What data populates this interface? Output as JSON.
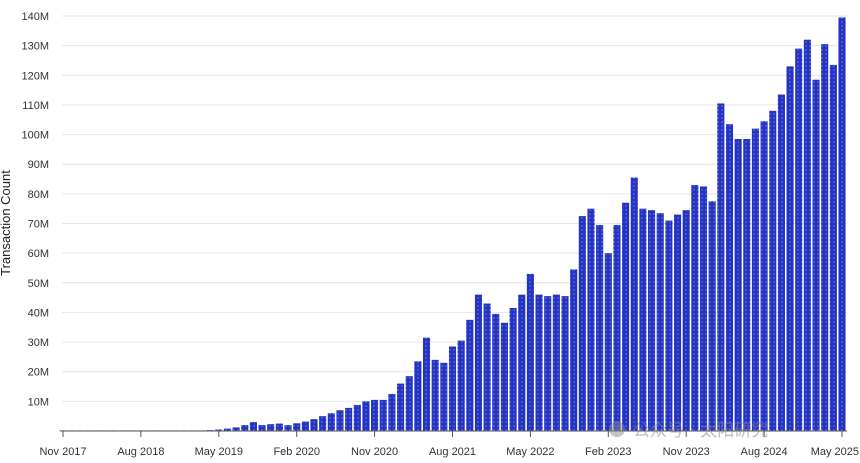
{
  "chart_data": {
    "type": "bar",
    "title": "",
    "xlabel": "",
    "ylabel": "Transaction Count",
    "ylim": [
      0,
      140
    ],
    "y_unit": "M",
    "y_ticks": [
      10,
      20,
      30,
      40,
      50,
      60,
      70,
      80,
      90,
      100,
      110,
      120,
      130,
      140
    ],
    "y_tick_labels": [
      "10M",
      "20M",
      "30M",
      "40M",
      "50M",
      "60M",
      "70M",
      "80M",
      "90M",
      "100M",
      "110M",
      "120M",
      "130M",
      "140M"
    ],
    "x_tick_labels": [
      "Nov 2017",
      "Aug 2018",
      "May 2019",
      "Feb 2020",
      "Nov 2020",
      "Aug 2021",
      "May 2022",
      "Feb 2023",
      "Nov 2023",
      "Aug 2024",
      "May 2025"
    ],
    "x_tick_index": [
      0,
      9,
      18,
      27,
      36,
      45,
      54,
      63,
      72,
      81,
      90
    ],
    "grid": true,
    "bar_color": "#2433c4",
    "series": [
      {
        "values": [
          0.05,
          0.05,
          0.05,
          0.05,
          0.05,
          0.05,
          0.05,
          0.05,
          0.05,
          0.05,
          0.05,
          0.05,
          0.05,
          0.05,
          0.05,
          0.1,
          0.2,
          0.3,
          0.5,
          0.8,
          1.2,
          2.0,
          3.0,
          2.0,
          2.3,
          2.5,
          2.0,
          2.6,
          3.2,
          4.0,
          5.0,
          6.0,
          7.0,
          7.8,
          8.8,
          10.0,
          10.5,
          10.5,
          12.5,
          16.0,
          18.5,
          23.5,
          31.5,
          24.0,
          23.0,
          28.5,
          30.5,
          37.5,
          46.0,
          43.0,
          39.5,
          36.5,
          41.5,
          46.0,
          53.0,
          46.0,
          45.5,
          46.0,
          45.5,
          54.5,
          72.5,
          75.0,
          69.5,
          60.0,
          69.5,
          77.0,
          85.5,
          75.0,
          74.5,
          73.5,
          71.0,
          73.0,
          74.5,
          83.0,
          82.5,
          77.5,
          110.5,
          103.5,
          98.5,
          98.5,
          102.0,
          104.5,
          108.0,
          113.5,
          123.0,
          129.0,
          132.0,
          118.5,
          130.5,
          123.5,
          139.5
        ]
      }
    ]
  },
  "watermark": {
    "text": "公众号 · 太阳研究"
  }
}
